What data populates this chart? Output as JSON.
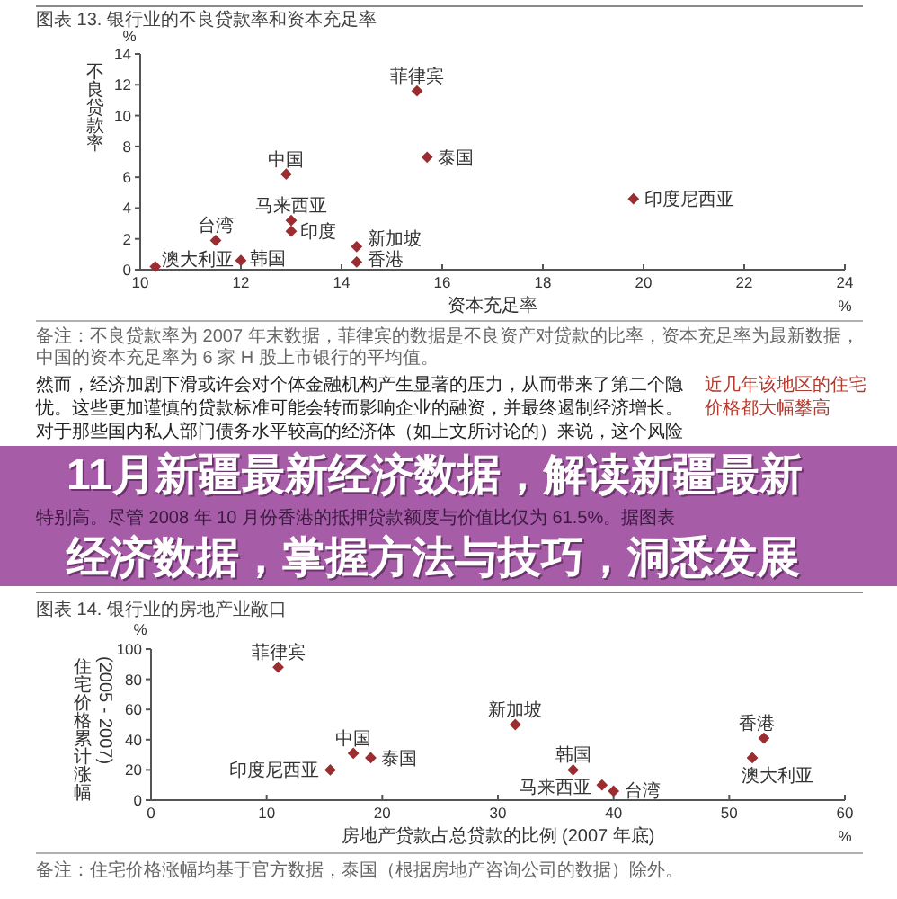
{
  "chart_data": [
    {
      "type": "scatter",
      "title": "图表 13. 银行业的不良贷款率和资本充足率",
      "xlabel": "资本充足率",
      "ylabel": "不良贷款率",
      "xlim": [
        10,
        24
      ],
      "xticks": [
        10,
        12,
        14,
        16,
        18,
        20,
        22,
        24
      ],
      "ylim": [
        0,
        14
      ],
      "yticks": [
        0,
        2,
        4,
        6,
        8,
        10,
        12,
        14
      ],
      "marker": "diamond",
      "annotations": [
        "%",
        "%",
        "备注：不良贷款率为 2007 年末数据，菲律宾的数据是不良资产对贷款的比率，资本充足率为最新数据，中国的资本充足率为 6 家 H 股上市银行的平均值。"
      ],
      "series": [
        {
          "name": "菲律宾",
          "color": "#9b2d30",
          "x": [
            15.5
          ],
          "values": [
            11.6
          ]
        },
        {
          "name": "泰国",
          "color": "#9b2d30",
          "x": [
            15.7
          ],
          "values": [
            7.3
          ]
        },
        {
          "name": "印度尼西亚",
          "color": "#9b2d30",
          "x": [
            19.8
          ],
          "values": [
            4.6
          ]
        },
        {
          "name": "中国",
          "color": "#9b2d30",
          "x": [
            12.9
          ],
          "values": [
            6.2
          ]
        },
        {
          "name": "马来西亚",
          "color": "#9b2d30",
          "x": [
            13.0
          ],
          "values": [
            3.2
          ]
        },
        {
          "name": "印度",
          "color": "#9b2d30",
          "x": [
            13.0
          ],
          "values": [
            2.5
          ]
        },
        {
          "name": "台湾",
          "color": "#9b2d30",
          "x": [
            11.5
          ],
          "values": [
            1.9
          ]
        },
        {
          "name": "新加坡",
          "color": "#9b2d30",
          "x": [
            14.3
          ],
          "values": [
            1.5
          ]
        },
        {
          "name": "香港",
          "color": "#9b2d30",
          "x": [
            14.3
          ],
          "values": [
            0.5
          ]
        },
        {
          "name": "韩国",
          "color": "#9b2d30",
          "x": [
            12.0
          ],
          "values": [
            0.6
          ]
        },
        {
          "name": "澳大利亚",
          "color": "#9b2d30",
          "x": [
            10.3
          ],
          "values": [
            0.2
          ]
        }
      ]
    },
    {
      "type": "other",
      "title": "11月新疆最新经济数据，解读新疆最新经济数据，掌握方法与技巧，洞悉发展",
      "annotations": [
        "然而，经济加剧下滑或许会对个体金融机构产生显著的压力，从而带来了第二个隐忧。这些更加谨慎的贷款标准可能会转而影响企业的融资，并最终遏制经济增长。对于那些国内私人部门债务水平较高的经济体（如上文所讨论的）来说，这个风险",
        "特别高。尽管 2008 年 10 月份香港的抵押贷款额度与价值比仅为 61.5%。据图表",
        "近几年该地区的住宅价格都大幅攀高"
      ]
    },
    {
      "type": "scatter",
      "title": "图表 14. 银行业的房地产业敞口",
      "xlabel": "房地产贷款占总贷款的比例 (2007 年底)",
      "ylabel": "住宅价格累计涨幅 (2005 - 2007)",
      "xlim": [
        0,
        60
      ],
      "xticks": [
        0,
        10,
        20,
        30,
        40,
        50,
        60
      ],
      "ylim": [
        0,
        100
      ],
      "yticks": [
        0,
        20,
        40,
        60,
        80,
        100
      ],
      "marker": "diamond",
      "annotations": [
        "%",
        "%",
        "备注：住宅价格涨幅均基于官方数据，泰国（根据房地产咨询公司的数据）除外。"
      ],
      "series": [
        {
          "name": "菲律宾",
          "color": "#9b2d30",
          "x": [
            11
          ],
          "values": [
            88
          ]
        },
        {
          "name": "新加坡",
          "color": "#9b2d30",
          "x": [
            31.5
          ],
          "values": [
            50
          ]
        },
        {
          "name": "香港",
          "color": "#9b2d30",
          "x": [
            53
          ],
          "values": [
            41
          ]
        },
        {
          "name": "澳大利亚",
          "color": "#9b2d30",
          "x": [
            52
          ],
          "values": [
            28
          ]
        },
        {
          "name": "中国",
          "color": "#9b2d30",
          "x": [
            17.5
          ],
          "values": [
            31
          ]
        },
        {
          "name": "泰国",
          "color": "#9b2d30",
          "x": [
            19
          ],
          "values": [
            28
          ]
        },
        {
          "name": "印度尼西亚",
          "color": "#9b2d30",
          "x": [
            15.5
          ],
          "values": [
            20
          ]
        },
        {
          "name": "韩国",
          "color": "#9b2d30",
          "x": [
            36.5
          ],
          "values": [
            20
          ]
        },
        {
          "name": "马来西亚",
          "color": "#9b2d30",
          "x": [
            39
          ],
          "values": [
            10
          ]
        },
        {
          "name": "台湾",
          "color": "#9b2d30",
          "x": [
            40
          ],
          "values": [
            6
          ]
        }
      ]
    }
  ]
}
